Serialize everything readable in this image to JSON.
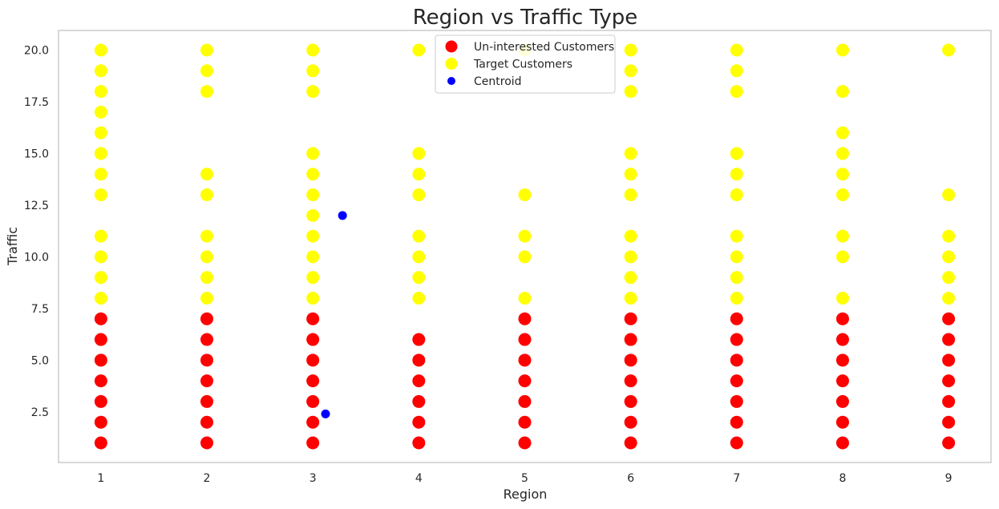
{
  "chart_data": {
    "type": "scatter",
    "title": "Region vs Traffic Type",
    "xlabel": "Region",
    "ylabel": "Traffic",
    "xlim": [
      0.6,
      9.4
    ],
    "ylim": [
      0.05,
      20.95
    ],
    "x_ticks": [
      1,
      2,
      3,
      4,
      5,
      6,
      7,
      8,
      9
    ],
    "y_ticks": [
      2.5,
      5.0,
      7.5,
      10.0,
      12.5,
      15.0,
      17.5,
      20.0
    ],
    "y_tick_labels": [
      "2.5",
      "5.0",
      "7.5",
      "10.0",
      "12.5",
      "15.0",
      "17.5",
      "20.0"
    ],
    "grid": false,
    "legend_position": "top-center",
    "series": [
      {
        "name": "Un-interested Customers",
        "color": "#ff0000",
        "points": [
          [
            1,
            1
          ],
          [
            1,
            2
          ],
          [
            1,
            3
          ],
          [
            1,
            4
          ],
          [
            1,
            5
          ],
          [
            1,
            6
          ],
          [
            1,
            7
          ],
          [
            2,
            1
          ],
          [
            2,
            2
          ],
          [
            2,
            3
          ],
          [
            2,
            4
          ],
          [
            2,
            5
          ],
          [
            2,
            6
          ],
          [
            2,
            7
          ],
          [
            3,
            1
          ],
          [
            3,
            2
          ],
          [
            3,
            3
          ],
          [
            3,
            4
          ],
          [
            3,
            5
          ],
          [
            3,
            6
          ],
          [
            3,
            7
          ],
          [
            4,
            1
          ],
          [
            4,
            2
          ],
          [
            4,
            3
          ],
          [
            4,
            4
          ],
          [
            4,
            5
          ],
          [
            4,
            6
          ],
          [
            5,
            1
          ],
          [
            5,
            2
          ],
          [
            5,
            3
          ],
          [
            5,
            4
          ],
          [
            5,
            5
          ],
          [
            5,
            6
          ],
          [
            5,
            7
          ],
          [
            6,
            1
          ],
          [
            6,
            2
          ],
          [
            6,
            3
          ],
          [
            6,
            4
          ],
          [
            6,
            5
          ],
          [
            6,
            6
          ],
          [
            6,
            7
          ],
          [
            7,
            1
          ],
          [
            7,
            2
          ],
          [
            7,
            3
          ],
          [
            7,
            4
          ],
          [
            7,
            5
          ],
          [
            7,
            6
          ],
          [
            7,
            7
          ],
          [
            8,
            1
          ],
          [
            8,
            2
          ],
          [
            8,
            3
          ],
          [
            8,
            4
          ],
          [
            8,
            5
          ],
          [
            8,
            6
          ],
          [
            8,
            7
          ],
          [
            9,
            1
          ],
          [
            9,
            2
          ],
          [
            9,
            3
          ],
          [
            9,
            4
          ],
          [
            9,
            5
          ],
          [
            9,
            6
          ],
          [
            9,
            7
          ]
        ]
      },
      {
        "name": "Target Customers",
        "color": "#ffff00",
        "points": [
          [
            1,
            8
          ],
          [
            1,
            9
          ],
          [
            1,
            10
          ],
          [
            1,
            11
          ],
          [
            1,
            13
          ],
          [
            1,
            14
          ],
          [
            1,
            15
          ],
          [
            1,
            16
          ],
          [
            1,
            17
          ],
          [
            1,
            18
          ],
          [
            1,
            19
          ],
          [
            1,
            20
          ],
          [
            2,
            8
          ],
          [
            2,
            9
          ],
          [
            2,
            10
          ],
          [
            2,
            11
          ],
          [
            2,
            13
          ],
          [
            2,
            14
          ],
          [
            2,
            18
          ],
          [
            2,
            19
          ],
          [
            2,
            20
          ],
          [
            3,
            8
          ],
          [
            3,
            9
          ],
          [
            3,
            10
          ],
          [
            3,
            11
          ],
          [
            3,
            12
          ],
          [
            3,
            13
          ],
          [
            3,
            14
          ],
          [
            3,
            15
          ],
          [
            3,
            18
          ],
          [
            3,
            19
          ],
          [
            3,
            20
          ],
          [
            4,
            8
          ],
          [
            4,
            9
          ],
          [
            4,
            10
          ],
          [
            4,
            11
          ],
          [
            4,
            13
          ],
          [
            4,
            14
          ],
          [
            4,
            15
          ],
          [
            4,
            20
          ],
          [
            5,
            8
          ],
          [
            5,
            10
          ],
          [
            5,
            11
          ],
          [
            5,
            13
          ],
          [
            5,
            20
          ],
          [
            6,
            8
          ],
          [
            6,
            9
          ],
          [
            6,
            10
          ],
          [
            6,
            11
          ],
          [
            6,
            13
          ],
          [
            6,
            14
          ],
          [
            6,
            15
          ],
          [
            6,
            18
          ],
          [
            6,
            19
          ],
          [
            6,
            20
          ],
          [
            7,
            8
          ],
          [
            7,
            9
          ],
          [
            7,
            10
          ],
          [
            7,
            11
          ],
          [
            7,
            13
          ],
          [
            7,
            14
          ],
          [
            7,
            15
          ],
          [
            7,
            18
          ],
          [
            7,
            19
          ],
          [
            7,
            20
          ],
          [
            8,
            8
          ],
          [
            8,
            10
          ],
          [
            8,
            11
          ],
          [
            8,
            13
          ],
          [
            8,
            14
          ],
          [
            8,
            15
          ],
          [
            8,
            16
          ],
          [
            8,
            18
          ],
          [
            8,
            20
          ],
          [
            9,
            8
          ],
          [
            9,
            9
          ],
          [
            9,
            10
          ],
          [
            9,
            11
          ],
          [
            9,
            13
          ],
          [
            9,
            20
          ]
        ]
      },
      {
        "name": "Centroid",
        "color": "#0000ff",
        "points": [
          [
            3.12,
            2.4
          ],
          [
            3.28,
            12.0
          ]
        ]
      }
    ]
  }
}
